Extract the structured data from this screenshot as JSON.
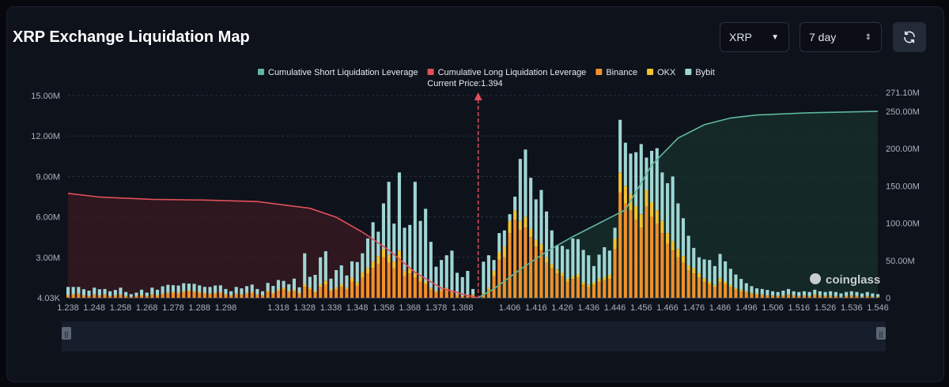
{
  "header": {
    "title": "XRP Exchange Liquidation Map",
    "symbol_select": "XRP",
    "range_select": "7 day"
  },
  "watermark": "coinglass",
  "current_price_label": "Current Price:1.394",
  "colors": {
    "short_cum": "#5fb7a0",
    "long_cum": "#e0505a",
    "binance": "#f0902a",
    "okx": "#f2c230",
    "bybit": "#9fd6d4"
  },
  "chart_data": {
    "type": "bar",
    "title": "XRP Exchange Liquidation Map",
    "current_price": 1.394,
    "legend": [
      {
        "name": "Cumulative Short Liquidation Leverage",
        "color": "#5fb7a0"
      },
      {
        "name": "Cumulative Long Liquidation Leverage",
        "color": "#e0505a"
      },
      {
        "name": "Binance",
        "color": "#f0902a"
      },
      {
        "name": "OKX",
        "color": "#f2c230"
      },
      {
        "name": "Bybit",
        "color": "#9fd6d4"
      }
    ],
    "x_ticks": [
      "1.238",
      "1.248",
      "1.258",
      "1.268",
      "1.278",
      "1.288",
      "1.298",
      "1.318",
      "1.328",
      "1.338",
      "1.348",
      "1.358",
      "1.368",
      "1.378",
      "1.388",
      "1.406",
      "1.416",
      "1.426",
      "1.436",
      "1.446",
      "1.456",
      "1.466",
      "1.476",
      "1.486",
      "1.496",
      "1.506",
      "1.516",
      "1.526",
      "1.536",
      "1.546"
    ],
    "y_left": {
      "ticks": [
        "4.03K",
        "3.00M",
        "6.00M",
        "9.00M",
        "12.00M",
        "15.00M"
      ],
      "range": [
        0,
        15000000
      ]
    },
    "y_right": {
      "ticks": [
        "0",
        "50.00M",
        "100.00M",
        "150.00M",
        "200.00M",
        "250.00M",
        "271.10M"
      ],
      "range": [
        0,
        271100000
      ]
    },
    "categories": [
      1.238,
      1.24,
      1.242,
      1.244,
      1.246,
      1.248,
      1.25,
      1.252,
      1.254,
      1.256,
      1.258,
      1.26,
      1.262,
      1.264,
      1.266,
      1.268,
      1.27,
      1.272,
      1.274,
      1.276,
      1.278,
      1.28,
      1.282,
      1.284,
      1.286,
      1.288,
      1.29,
      1.292,
      1.294,
      1.296,
      1.298,
      1.3,
      1.302,
      1.304,
      1.306,
      1.308,
      1.31,
      1.312,
      1.314,
      1.316,
      1.318,
      1.32,
      1.322,
      1.324,
      1.326,
      1.328,
      1.33,
      1.332,
      1.334,
      1.336,
      1.338,
      1.34,
      1.342,
      1.344,
      1.346,
      1.348,
      1.35,
      1.352,
      1.354,
      1.356,
      1.358,
      1.36,
      1.362,
      1.364,
      1.366,
      1.368,
      1.37,
      1.372,
      1.374,
      1.376,
      1.378,
      1.38,
      1.382,
      1.384,
      1.386,
      1.388,
      1.39,
      1.392,
      1.394,
      1.396,
      1.398,
      1.4,
      1.402,
      1.404,
      1.406,
      1.408,
      1.41,
      1.412,
      1.414,
      1.416,
      1.418,
      1.42,
      1.422,
      1.424,
      1.426,
      1.428,
      1.43,
      1.432,
      1.434,
      1.436,
      1.438,
      1.44,
      1.442,
      1.444,
      1.446,
      1.448,
      1.45,
      1.452,
      1.454,
      1.456,
      1.458,
      1.46,
      1.462,
      1.464,
      1.466,
      1.468,
      1.47,
      1.472,
      1.474,
      1.476,
      1.478,
      1.48,
      1.482,
      1.484,
      1.486,
      1.488,
      1.49,
      1.492,
      1.494,
      1.496,
      1.498,
      1.5,
      1.502,
      1.504,
      1.506,
      1.508,
      1.51,
      1.512,
      1.514,
      1.516,
      1.518,
      1.52,
      1.522,
      1.524,
      1.526,
      1.528,
      1.53,
      1.532,
      1.534,
      1.536,
      1.538,
      1.54,
      1.542,
      1.544,
      1.546
    ],
    "series": [
      {
        "name": "Binance",
        "values": [
          0.15,
          0.2,
          0.25,
          0.15,
          0.1,
          0.2,
          0.15,
          0.2,
          0.1,
          0.15,
          0.2,
          0.1,
          0.05,
          0.1,
          0.15,
          0.1,
          0.2,
          0.15,
          0.25,
          0.3,
          0.35,
          0.3,
          0.4,
          0.45,
          0.4,
          0.35,
          0.3,
          0.25,
          0.3,
          0.35,
          0.2,
          0.15,
          0.25,
          0.2,
          0.3,
          0.35,
          0.2,
          0.15,
          0.4,
          0.3,
          0.5,
          0.6,
          0.4,
          0.5,
          0.3,
          0.8,
          0.6,
          0.4,
          0.8,
          1.0,
          0.5,
          0.6,
          0.8,
          0.6,
          1.2,
          0.9,
          1.5,
          1.8,
          2.2,
          2.5,
          3.0,
          2.6,
          2.2,
          2.8,
          1.6,
          1.8,
          1.5,
          1.2,
          1.0,
          0.6,
          0.4,
          0.5,
          0.6,
          0.4,
          0.2,
          0.1,
          0.15,
          0.2,
          0.0,
          0.3,
          0.6,
          1.6,
          2.8,
          3.0,
          4.8,
          5.8,
          5.0,
          5.2,
          4.5,
          3.8,
          3.5,
          2.6,
          2.2,
          1.8,
          1.6,
          1.2,
          1.4,
          1.5,
          1.0,
          0.8,
          1.0,
          1.2,
          1.3,
          1.4,
          3.6,
          7.8,
          7.0,
          6.5,
          5.8,
          5.2,
          6.8,
          6.0,
          5.5,
          4.8,
          4.0,
          3.5,
          3.0,
          2.6,
          2.0,
          1.8,
          1.5,
          1.2,
          1.0,
          0.8,
          1.2,
          1.0,
          0.8,
          0.6,
          0.5,
          0.4,
          0.3,
          0.25,
          0.2,
          0.15,
          0.15,
          0.1,
          0.15,
          0.2,
          0.15,
          0.1,
          0.15,
          0.1,
          0.2,
          0.15,
          0.1,
          0.15,
          0.1,
          0.05,
          0.1,
          0.15,
          0.1,
          0.05,
          0.1,
          0.05,
          0.05
        ]
      },
      {
        "name": "OKX",
        "values": [
          0.05,
          0.05,
          0.05,
          0.03,
          0.03,
          0.05,
          0.03,
          0.05,
          0.03,
          0.03,
          0.05,
          0.03,
          0.02,
          0.03,
          0.05,
          0.03,
          0.05,
          0.05,
          0.05,
          0.06,
          0.08,
          0.06,
          0.08,
          0.1,
          0.08,
          0.07,
          0.06,
          0.05,
          0.06,
          0.07,
          0.05,
          0.03,
          0.05,
          0.05,
          0.06,
          0.08,
          0.05,
          0.03,
          0.1,
          0.08,
          0.12,
          0.15,
          0.1,
          0.12,
          0.08,
          0.2,
          0.15,
          0.1,
          0.2,
          0.25,
          0.12,
          0.15,
          0.2,
          0.15,
          0.3,
          0.25,
          0.4,
          0.4,
          0.5,
          0.6,
          0.6,
          0.6,
          0.5,
          0.7,
          0.4,
          0.4,
          0.3,
          0.3,
          0.2,
          0.15,
          0.1,
          0.1,
          0.15,
          0.1,
          0.05,
          0.03,
          0.04,
          0.05,
          0.0,
          0.08,
          0.15,
          0.4,
          0.6,
          0.8,
          0.9,
          0.7,
          0.7,
          0.8,
          0.6,
          0.5,
          0.5,
          0.4,
          0.3,
          0.3,
          0.25,
          0.2,
          0.2,
          0.25,
          0.15,
          0.15,
          0.15,
          0.2,
          0.25,
          0.3,
          0.8,
          1.5,
          1.3,
          1.2,
          1.0,
          1.0,
          1.2,
          1.1,
          1.0,
          0.9,
          0.8,
          0.7,
          0.6,
          0.5,
          0.4,
          0.4,
          0.3,
          0.25,
          0.2,
          0.15,
          0.25,
          0.2,
          0.15,
          0.12,
          0.1,
          0.08,
          0.06,
          0.05,
          0.05,
          0.03,
          0.03,
          0.03,
          0.03,
          0.05,
          0.03,
          0.03,
          0.03,
          0.03,
          0.05,
          0.03,
          0.03,
          0.03,
          0.03,
          0.02,
          0.03,
          0.03,
          0.03,
          0.02,
          0.03,
          0.02,
          0.02
        ]
      },
      {
        "name": "Bybit",
        "values": [
          0.6,
          0.55,
          0.5,
          0.45,
          0.4,
          0.5,
          0.45,
          0.4,
          0.35,
          0.4,
          0.5,
          0.3,
          0.2,
          0.25,
          0.4,
          0.25,
          0.5,
          0.4,
          0.55,
          0.6,
          0.5,
          0.55,
          0.6,
          0.5,
          0.55,
          0.5,
          0.45,
          0.5,
          0.55,
          0.5,
          0.4,
          0.3,
          0.5,
          0.45,
          0.5,
          0.55,
          0.4,
          0.3,
          0.6,
          0.5,
          0.7,
          0.5,
          0.5,
          0.8,
          0.4,
          2.3,
          0.8,
          1.2,
          2.0,
          2.2,
          0.8,
          1.3,
          1.4,
          0.9,
          1.2,
          1.5,
          1.4,
          2.2,
          2.9,
          1.8,
          3.4,
          5.4,
          2.8,
          5.8,
          3.2,
          3.2,
          6.8,
          4.2,
          5.4,
          3.4,
          1.8,
          2.2,
          2.4,
          3.0,
          1.6,
          1.4,
          1.8,
          0.4,
          0.0,
          2.3,
          2.4,
          0.8,
          1.4,
          1.2,
          0.5,
          1.0,
          4.6,
          5.0,
          3.8,
          3.0,
          4.0,
          3.4,
          2.5,
          1.8,
          2.0,
          2.2,
          2.8,
          2.6,
          2.4,
          2.2,
          1.2,
          1.8,
          2.2,
          1.8,
          0.8,
          3.9,
          3.2,
          3.0,
          4.0,
          5.2,
          2.4,
          3.8,
          4.6,
          3.6,
          3.7,
          4.8,
          3.4,
          2.8,
          2.2,
          1.5,
          1.2,
          1.4,
          1.6,
          1.4,
          1.8,
          1.5,
          1.2,
          1.0,
          0.8,
          0.6,
          0.5,
          0.4,
          0.4,
          0.4,
          0.3,
          0.3,
          0.35,
          0.4,
          0.3,
          0.3,
          0.3,
          0.3,
          0.35,
          0.3,
          0.3,
          0.3,
          0.3,
          0.25,
          0.3,
          0.3,
          0.3,
          0.25,
          0.3,
          0.25,
          0.2
        ]
      }
    ],
    "cumulative_long": {
      "name": "Cumulative Long Liquidation Leverage",
      "x": [
        1.238,
        1.25,
        1.27,
        1.29,
        1.31,
        1.33,
        1.34,
        1.35,
        1.36,
        1.37,
        1.38,
        1.39,
        1.394
      ],
      "y": [
        140,
        135,
        132,
        131,
        129,
        120,
        108,
        88,
        64,
        34,
        13,
        3,
        0
      ]
    },
    "cumulative_short": {
      "name": "Cumulative Short Liquidation Leverage",
      "x": [
        1.394,
        1.4,
        1.41,
        1.42,
        1.43,
        1.44,
        1.45,
        1.46,
        1.47,
        1.48,
        1.49,
        1.5,
        1.52,
        1.546
      ],
      "y": [
        0,
        12,
        38,
        62,
        82,
        100,
        118,
        178,
        214,
        232,
        241,
        245,
        248,
        250
      ]
    }
  }
}
